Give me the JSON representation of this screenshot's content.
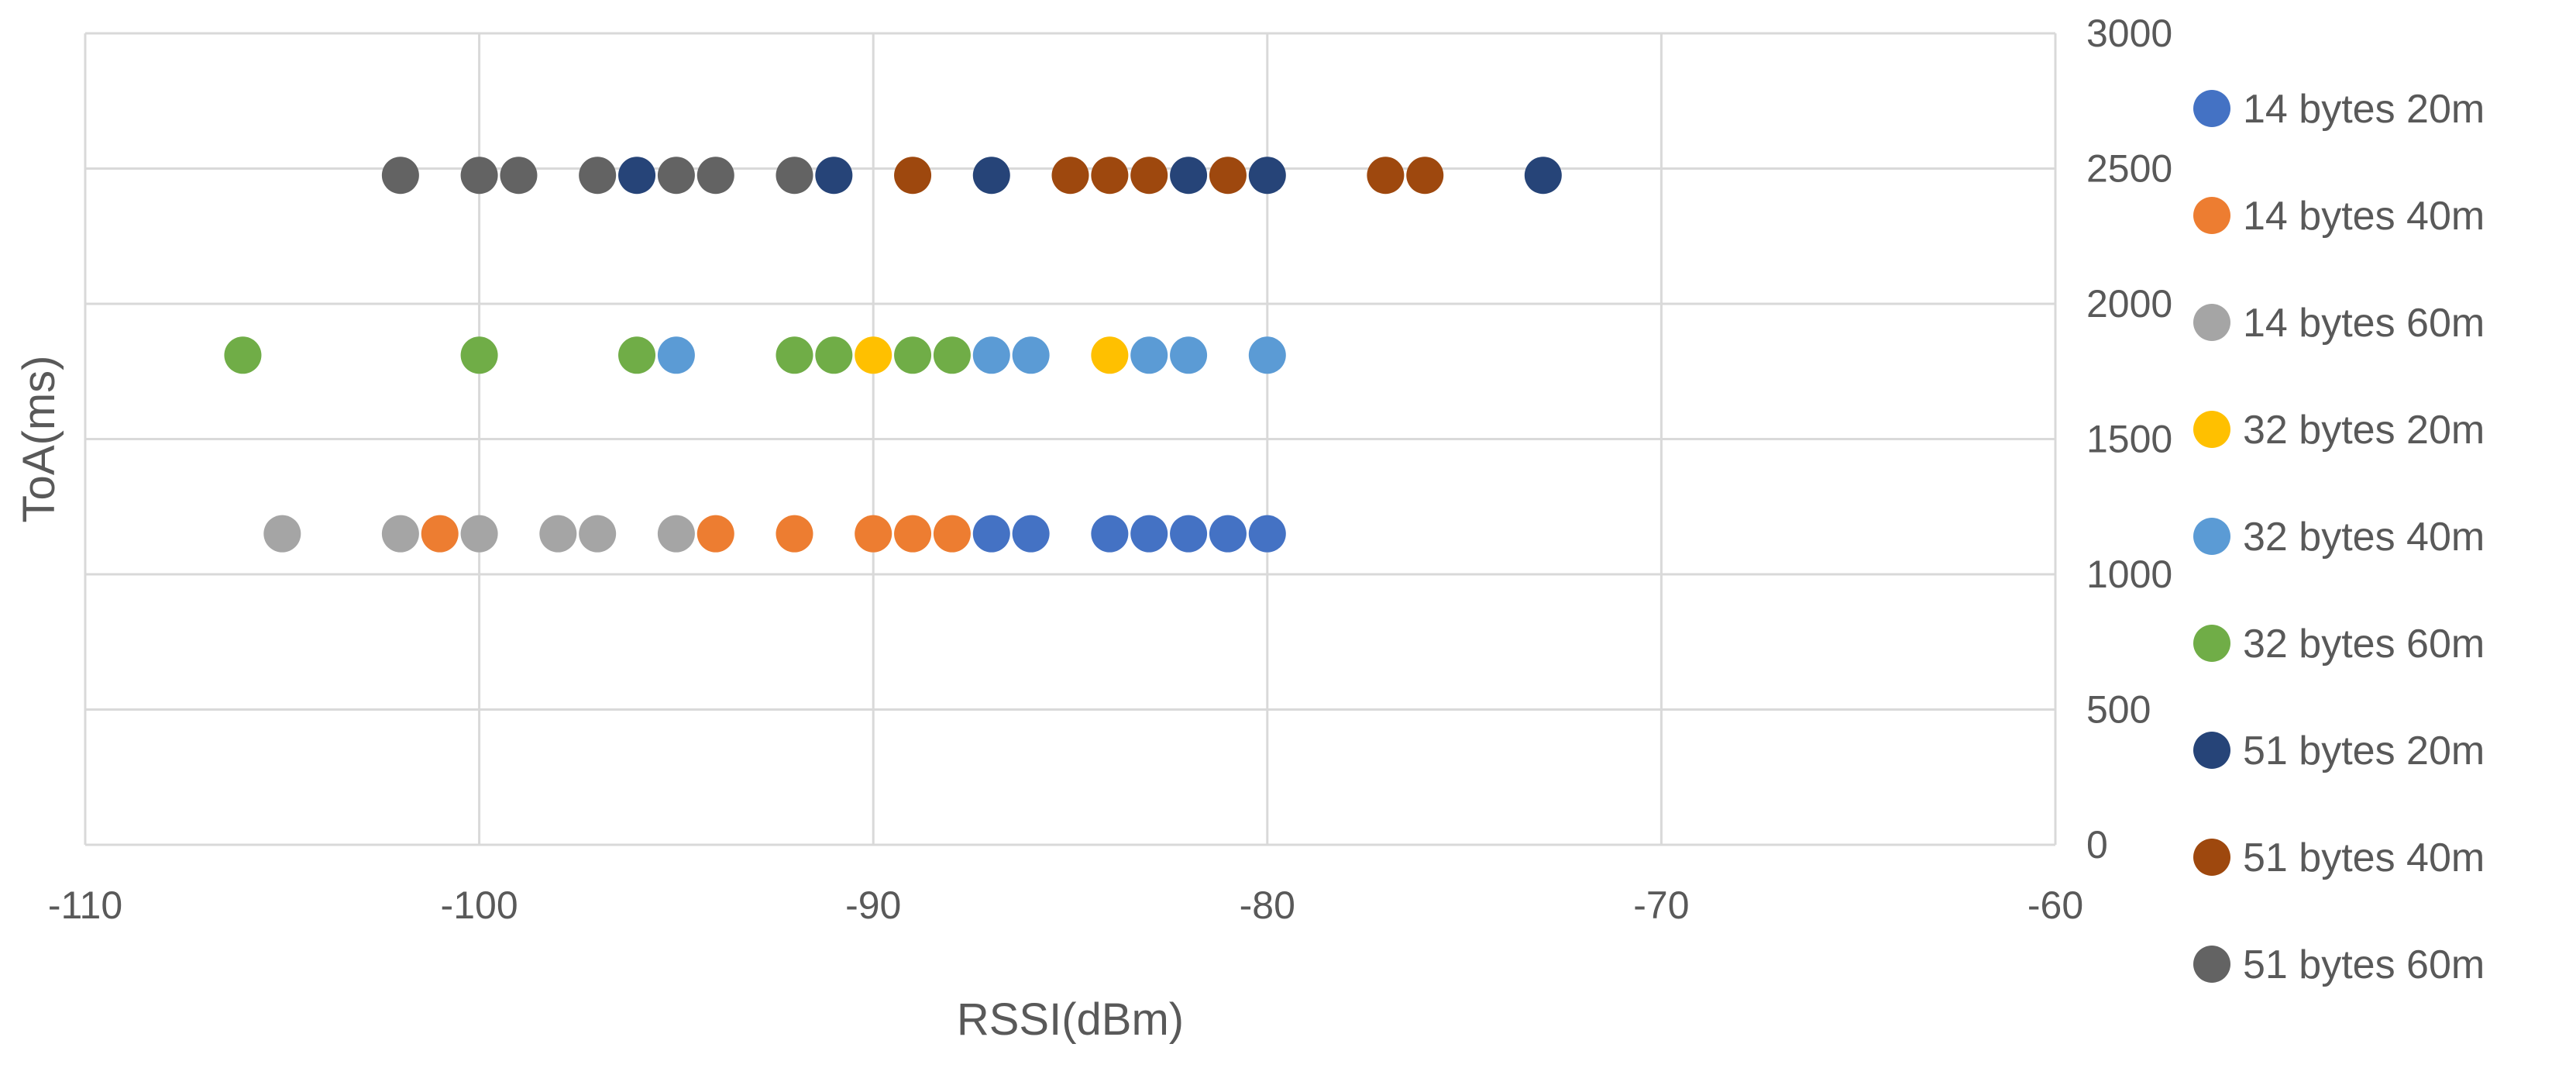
{
  "chart_data": {
    "type": "scatter",
    "title": "",
    "xlabel": "RSSI(dBm)",
    "ylabel": "ToA(ms)",
    "xlim": [
      -110,
      -60
    ],
    "ylim": [
      0,
      3000
    ],
    "xticks": [
      -110,
      -100,
      -90,
      -80,
      -70,
      -60
    ],
    "yticks": [
      0,
      500,
      1000,
      1500,
      2000,
      2500,
      3000
    ],
    "grid": true,
    "legend_position": "right",
    "series": [
      {
        "name": "14 bytes 20m",
        "color": "#4472C4",
        "y": 1150,
        "x": [
          -87,
          -86,
          -84,
          -83,
          -82,
          -81,
          -80
        ]
      },
      {
        "name": "14 bytes 40m",
        "color": "#ED7D31",
        "y": 1150,
        "x": [
          -101,
          -94,
          -92,
          -90,
          -89,
          -88
        ]
      },
      {
        "name": "14 bytes 60m",
        "color": "#A5A5A5",
        "y": 1150,
        "x": [
          -105,
          -102,
          -100,
          -98,
          -97,
          -95
        ]
      },
      {
        "name": "32 bytes 20m",
        "color": "#FFC000",
        "y": 1810,
        "x": [
          -90,
          -84
        ]
      },
      {
        "name": "32 bytes 40m",
        "color": "#5B9BD5",
        "y": 1810,
        "x": [
          -95,
          -87,
          -86,
          -83,
          -82,
          -80
        ]
      },
      {
        "name": "32 bytes 60m",
        "color": "#70AD47",
        "y": 1810,
        "x": [
          -106,
          -100,
          -96,
          -92,
          -91,
          -89,
          -88
        ]
      },
      {
        "name": "51 bytes 20m",
        "color": "#264478",
        "y": 2475,
        "x": [
          -96,
          -91,
          -87,
          -82,
          -80,
          -73
        ]
      },
      {
        "name": "51 bytes 40m",
        "color": "#9E480E",
        "y": 2475,
        "x": [
          -89,
          -85,
          -84,
          -83,
          -81,
          -77,
          -76
        ]
      },
      {
        "name": "51 bytes 60m",
        "color": "#636363",
        "y": 2475,
        "x": [
          -102,
          -100,
          -99,
          -97,
          -95,
          -94,
          -92
        ]
      }
    ]
  }
}
